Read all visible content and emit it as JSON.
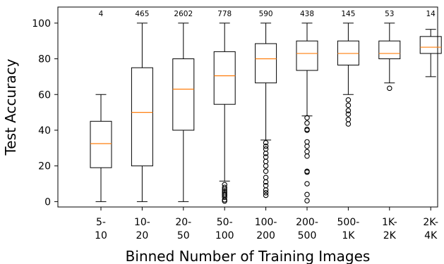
{
  "chart_data": {
    "type": "box",
    "xlabel": "Binned Number of Training Images",
    "ylabel": "Test Accuracy",
    "ylim": [
      -3,
      109
    ],
    "yticks": [
      0,
      20,
      40,
      60,
      80,
      100
    ],
    "grid": false,
    "categories": [
      {
        "label_lines": [
          "5-",
          "10"
        ],
        "count": "4",
        "min": 0,
        "q1": 19,
        "median": 32.5,
        "q3": 45,
        "max": 60,
        "outliers": []
      },
      {
        "label_lines": [
          "10-",
          "20"
        ],
        "count": "465",
        "min": 0,
        "q1": 20,
        "median": 50,
        "q3": 75,
        "max": 100,
        "outliers": []
      },
      {
        "label_lines": [
          "20-",
          "50"
        ],
        "count": "2602",
        "min": 0,
        "q1": 40,
        "median": 63,
        "q3": 80,
        "max": 100,
        "outliers": []
      },
      {
        "label_lines": [
          "50-",
          "100"
        ],
        "count": "778",
        "min": 11.5,
        "q1": 54.5,
        "median": 70.5,
        "q3": 84,
        "max": 100,
        "outliers": [
          9.5,
          8,
          7,
          6,
          5,
          4,
          3.5,
          2.5,
          1,
          0.3
        ]
      },
      {
        "label_lines": [
          "100-",
          "200"
        ],
        "count": "590",
        "min": 34.5,
        "q1": 66.5,
        "median": 80,
        "q3": 88.5,
        "max": 100,
        "outliers": [
          33,
          31,
          29.5,
          27,
          25,
          22.5,
          20,
          17,
          13.5,
          11,
          9,
          6.5,
          5,
          3.5
        ]
      },
      {
        "label_lines": [
          "200-",
          "500"
        ],
        "count": "438",
        "min": 48,
        "q1": 73.5,
        "median": 83,
        "q3": 90,
        "max": 100,
        "outliers": [
          47,
          44,
          40.5,
          40,
          33.5,
          31,
          28,
          25.5,
          17,
          16.5,
          10,
          4,
          0.5
        ]
      },
      {
        "label_lines": [
          "500-",
          "1K"
        ],
        "count": "145",
        "min": 60,
        "q1": 76.5,
        "median": 83,
        "q3": 90,
        "max": 100,
        "outliers": [
          57,
          54,
          51,
          49,
          46,
          43.5
        ]
      },
      {
        "label_lines": [
          "1K-",
          "2K"
        ],
        "count": "53",
        "min": 66.5,
        "q1": 80,
        "median": 83,
        "q3": 90,
        "max": 100,
        "outliers": [
          63.5
        ]
      },
      {
        "label_lines": [
          "2K-",
          "4K"
        ],
        "count": "14",
        "min": 70,
        "q1": 83,
        "median": 86.5,
        "q3": 92.5,
        "max": 96.5,
        "outliers": []
      }
    ],
    "colors": {
      "box": "#000000",
      "median": "#ff7f0e",
      "outlier_edge": "#000000"
    }
  }
}
